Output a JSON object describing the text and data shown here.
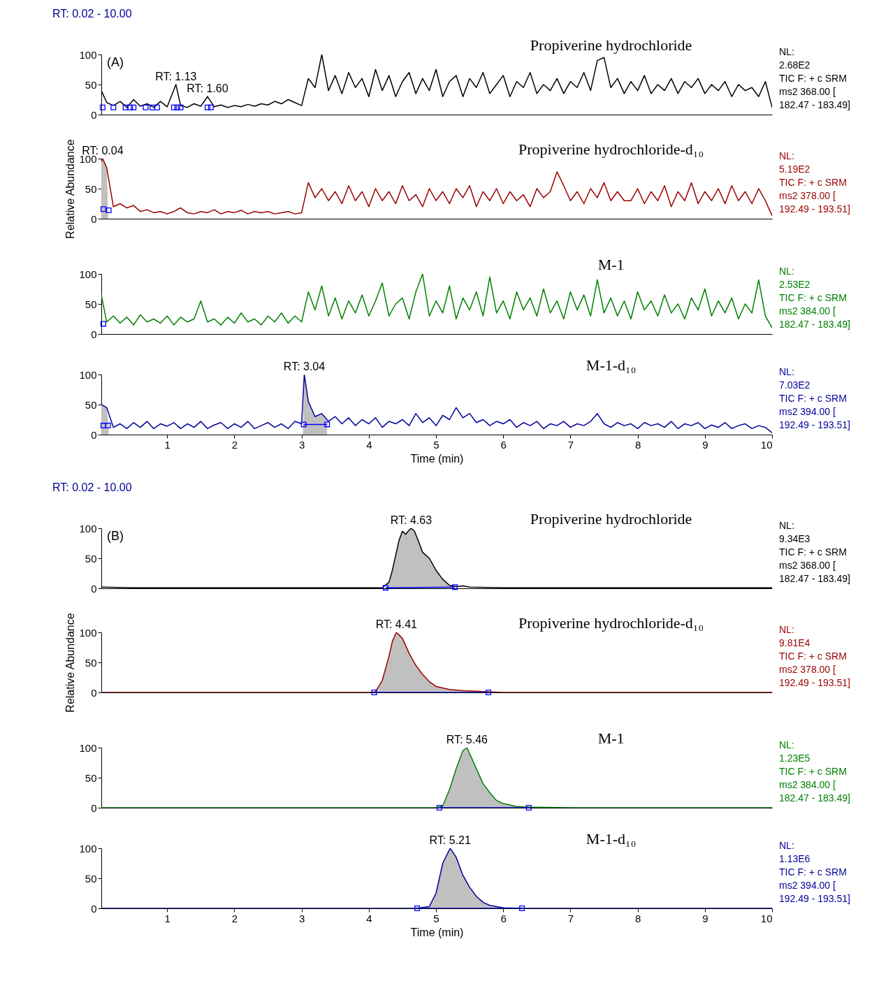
{
  "chart_data": [
    {
      "type": "other",
      "title": "RT: 0.02 - 10.00"
    },
    {
      "type": "line",
      "title": "Propiverine hydrochloride",
      "subtitle": "(A)",
      "xlim": [
        0.02,
        10
      ],
      "xticks": [
        1,
        2,
        3,
        4,
        5,
        6,
        7,
        8,
        9,
        10
      ],
      "ylim": [
        0,
        100
      ],
      "yticks": [
        0,
        50,
        100
      ],
      "tick_labels": "y",
      "series": [
        {
          "type": "line",
          "color": "#000000",
          "x": [
            0.02,
            0.1,
            0.2,
            0.3,
            0.4,
            0.5,
            0.6,
            0.7,
            0.8,
            0.9,
            1.0,
            1.13,
            1.2,
            1.3,
            1.4,
            1.5,
            1.6,
            1.7,
            1.8,
            1.9,
            2.0,
            2.1,
            2.2,
            2.3,
            2.4,
            2.5,
            2.6,
            2.7,
            2.8,
            2.9,
            3.0,
            3.1,
            3.2,
            3.3,
            3.4,
            3.5,
            3.6,
            3.7,
            3.8,
            3.9,
            4.0,
            4.1,
            4.2,
            4.3,
            4.4,
            4.5,
            4.6,
            4.7,
            4.8,
            4.9,
            5.0,
            5.1,
            5.2,
            5.3,
            5.4,
            5.5,
            5.6,
            5.7,
            5.8,
            5.9,
            6.0,
            6.1,
            6.2,
            6.3,
            6.4,
            6.5,
            6.6,
            6.7,
            6.8,
            6.9,
            7.0,
            7.1,
            7.2,
            7.3,
            7.4,
            7.5,
            7.6,
            7.7,
            7.8,
            7.9,
            8.0,
            8.1,
            8.2,
            8.3,
            8.4,
            8.5,
            8.6,
            8.7,
            8.8,
            8.9,
            9.0,
            9.1,
            9.2,
            9.3,
            9.4,
            9.5,
            9.6,
            9.7,
            9.8,
            9.9,
            10.0
          ],
          "values": [
            40,
            20,
            15,
            22,
            12,
            25,
            14,
            18,
            12,
            22,
            13,
            50,
            15,
            12,
            18,
            14,
            30,
            13,
            16,
            12,
            15,
            13,
            17,
            14,
            18,
            16,
            22,
            18,
            25,
            20,
            15,
            60,
            45,
            100,
            40,
            65,
            35,
            70,
            45,
            60,
            30,
            75,
            40,
            65,
            30,
            55,
            70,
            35,
            60,
            40,
            75,
            30,
            55,
            65,
            30,
            60,
            45,
            70,
            35,
            50,
            65,
            30,
            55,
            45,
            70,
            35,
            50,
            40,
            60,
            35,
            55,
            45,
            70,
            40,
            90,
            95,
            45,
            60,
            35,
            55,
            40,
            65,
            35,
            50,
            40,
            60,
            35,
            55,
            45,
            60,
            35,
            50,
            40,
            55,
            30,
            50,
            40,
            45,
            30,
            55,
            12
          ]
        },
        {
          "type": "scatter",
          "marker": "square",
          "color": "#0000ff",
          "x": [
            0.04,
            0.2,
            0.38,
            0.45,
            0.5,
            0.68,
            0.78,
            0.85,
            1.1,
            1.15,
            1.2,
            1.6,
            1.65
          ],
          "values": [
            12,
            12,
            12,
            12,
            12,
            12,
            12,
            12,
            12,
            12,
            12,
            12,
            12
          ]
        }
      ],
      "annotations": [
        "NL:",
        "2.68E2",
        "TIC F: + c SRM",
        "ms2 368.00 [",
        "182.47 - 183.49]",
        {
          "text": "RT: 1.13",
          "x": 1.13,
          "y": 50
        },
        {
          "text": "RT: 1.60",
          "x": 1.6,
          "y": 30
        }
      ]
    },
    {
      "type": "line",
      "title": "Propiverine hydrochloride-d₁₀",
      "xlim": [
        0.02,
        10
      ],
      "xticks": [
        1,
        2,
        3,
        4,
        5,
        6,
        7,
        8,
        9,
        10
      ],
      "ylim": [
        0,
        100
      ],
      "yticks": [
        0,
        50,
        100
      ],
      "tick_labels": "y",
      "ylabel": "Relative Abundance",
      "series": [
        {
          "type": "area",
          "color": "#c0c0c0",
          "x": [
            0.02,
            0.04,
            0.1,
            0.12
          ],
          "values": [
            95,
            100,
            85,
            15
          ]
        },
        {
          "type": "line",
          "color": "#990000",
          "x": [
            0.02,
            0.04,
            0.1,
            0.2,
            0.3,
            0.4,
            0.5,
            0.6,
            0.7,
            0.8,
            0.9,
            1.0,
            1.1,
            1.2,
            1.3,
            1.4,
            1.5,
            1.6,
            1.7,
            1.8,
            1.9,
            2.0,
            2.1,
            2.2,
            2.3,
            2.4,
            2.5,
            2.6,
            2.7,
            2.8,
            2.9,
            3.0,
            3.1,
            3.2,
            3.3,
            3.4,
            3.5,
            3.6,
            3.7,
            3.8,
            3.9,
            4.0,
            4.1,
            4.2,
            4.3,
            4.4,
            4.5,
            4.6,
            4.7,
            4.8,
            4.9,
            5.0,
            5.1,
            5.2,
            5.3,
            5.4,
            5.5,
            5.6,
            5.7,
            5.8,
            5.9,
            6.0,
            6.1,
            6.2,
            6.3,
            6.4,
            6.5,
            6.6,
            6.7,
            6.8,
            6.9,
            7.0,
            7.1,
            7.2,
            7.3,
            7.4,
            7.5,
            7.6,
            7.7,
            7.8,
            7.9,
            8.0,
            8.1,
            8.2,
            8.3,
            8.4,
            8.5,
            8.6,
            8.7,
            8.8,
            8.9,
            9.0,
            9.1,
            9.2,
            9.3,
            9.4,
            9.5,
            9.6,
            9.7,
            9.8,
            9.9,
            10.0
          ],
          "values": [
            95,
            100,
            85,
            20,
            25,
            18,
            22,
            12,
            15,
            10,
            12,
            8,
            12,
            18,
            10,
            8,
            12,
            10,
            15,
            8,
            12,
            10,
            14,
            8,
            12,
            10,
            12,
            8,
            10,
            12,
            8,
            10,
            60,
            35,
            50,
            30,
            45,
            25,
            55,
            30,
            45,
            20,
            50,
            30,
            45,
            25,
            55,
            30,
            40,
            20,
            50,
            30,
            45,
            25,
            50,
            35,
            55,
            20,
            45,
            30,
            50,
            25,
            45,
            30,
            40,
            20,
            50,
            35,
            45,
            78,
            55,
            30,
            45,
            25,
            50,
            35,
            60,
            30,
            45,
            30,
            30,
            50,
            25,
            45,
            30,
            55,
            20,
            45,
            30,
            60,
            25,
            45,
            30,
            50,
            25,
            55,
            30,
            45,
            25,
            50,
            30,
            5
          ]
        },
        {
          "type": "scatter",
          "marker": "square",
          "color": "#0000ff",
          "x": [
            0.05,
            0.13
          ],
          "values": [
            16,
            14
          ]
        }
      ],
      "annotations": [
        "NL:",
        "5.19E2",
        "TIC F: + c SRM",
        "ms2 378.00 [",
        "192.49 - 193.51]",
        {
          "text": "RT: 0.04",
          "x": 0.04,
          "y": 100
        }
      ]
    },
    {
      "type": "line",
      "title": "M-1",
      "xlim": [
        0.02,
        10
      ],
      "xticks": [
        1,
        2,
        3,
        4,
        5,
        6,
        7,
        8,
        9,
        10
      ],
      "ylim": [
        0,
        100
      ],
      "yticks": [
        0,
        50,
        100
      ],
      "tick_labels": "y",
      "series": [
        {
          "type": "line",
          "color": "#008000",
          "x": [
            0.02,
            0.1,
            0.2,
            0.3,
            0.4,
            0.5,
            0.6,
            0.7,
            0.8,
            0.9,
            1.0,
            1.1,
            1.2,
            1.3,
            1.4,
            1.5,
            1.6,
            1.7,
            1.8,
            1.9,
            2.0,
            2.1,
            2.2,
            2.3,
            2.4,
            2.5,
            2.6,
            2.7,
            2.8,
            2.9,
            3.0,
            3.1,
            3.2,
            3.3,
            3.4,
            3.5,
            3.6,
            3.7,
            3.8,
            3.9,
            4.0,
            4.1,
            4.2,
            4.3,
            4.4,
            4.5,
            4.6,
            4.7,
            4.8,
            4.9,
            5.0,
            5.1,
            5.2,
            5.3,
            5.4,
            5.5,
            5.6,
            5.7,
            5.8,
            5.9,
            6.0,
            6.1,
            6.2,
            6.3,
            6.4,
            6.5,
            6.6,
            6.7,
            6.8,
            6.9,
            7.0,
            7.1,
            7.2,
            7.3,
            7.4,
            7.5,
            7.6,
            7.7,
            7.8,
            7.9,
            8.0,
            8.1,
            8.2,
            8.3,
            8.4,
            8.5,
            8.6,
            8.7,
            8.8,
            8.9,
            9.0,
            9.1,
            9.2,
            9.3,
            9.4,
            9.5,
            9.6,
            9.7,
            9.8,
            9.9,
            10.0
          ],
          "values": [
            65,
            20,
            30,
            18,
            28,
            15,
            32,
            20,
            25,
            18,
            30,
            15,
            28,
            20,
            25,
            55,
            20,
            25,
            15,
            28,
            18,
            35,
            20,
            25,
            15,
            30,
            20,
            35,
            18,
            30,
            20,
            70,
            40,
            80,
            30,
            60,
            25,
            55,
            35,
            65,
            30,
            55,
            85,
            30,
            50,
            60,
            25,
            70,
            100,
            30,
            55,
            35,
            80,
            25,
            60,
            40,
            70,
            30,
            95,
            35,
            55,
            25,
            70,
            40,
            60,
            30,
            75,
            35,
            55,
            25,
            70,
            40,
            65,
            30,
            90,
            35,
            60,
            30,
            55,
            25,
            70,
            40,
            55,
            30,
            65,
            35,
            50,
            25,
            60,
            40,
            75,
            30,
            55,
            35,
            60,
            25,
            50,
            35,
            90,
            30,
            10
          ]
        },
        {
          "type": "scatter",
          "marker": "square",
          "color": "#0000ff",
          "x": [
            0.05
          ],
          "values": [
            17
          ]
        }
      ],
      "annotations": [
        "NL:",
        "2.53E2",
        "TIC F: + c SRM",
        "ms2 384.00 [",
        "182.47 - 183.49]"
      ]
    },
    {
      "type": "line",
      "title": "M-1-d₁₀",
      "xlim": [
        0.02,
        10
      ],
      "xticks": [
        1,
        2,
        3,
        4,
        5,
        6,
        7,
        8,
        9,
        10
      ],
      "ylim": [
        0,
        100
      ],
      "yticks": [
        0,
        50,
        100
      ],
      "xlabel": "Time (min)",
      "series": [
        {
          "type": "area",
          "color": "#c0c0c0",
          "x": [
            0.02,
            0.1,
            0.13
          ],
          "values": [
            50,
            45,
            15
          ]
        },
        {
          "type": "area",
          "color": "#c0c0c0",
          "x": [
            3.02,
            3.04,
            3.1,
            3.2,
            3.3,
            3.38
          ],
          "values": [
            20,
            100,
            55,
            30,
            35,
            22
          ]
        },
        {
          "type": "line",
          "color": "#000099",
          "x": [
            0.02,
            0.1,
            0.2,
            0.3,
            0.4,
            0.5,
            0.6,
            0.7,
            0.8,
            0.9,
            1.0,
            1.1,
            1.2,
            1.3,
            1.4,
            1.5,
            1.6,
            1.7,
            1.8,
            1.9,
            2.0,
            2.1,
            2.2,
            2.3,
            2.4,
            2.5,
            2.6,
            2.7,
            2.8,
            2.9,
            3.0,
            3.04,
            3.1,
            3.2,
            3.3,
            3.4,
            3.5,
            3.6,
            3.7,
            3.8,
            3.9,
            4.0,
            4.1,
            4.2,
            4.3,
            4.4,
            4.5,
            4.6,
            4.7,
            4.8,
            4.9,
            5.0,
            5.1,
            5.2,
            5.3,
            5.4,
            5.5,
            5.6,
            5.7,
            5.8,
            5.9,
            6.0,
            6.1,
            6.2,
            6.3,
            6.4,
            6.5,
            6.6,
            6.7,
            6.8,
            6.9,
            7.0,
            7.1,
            7.2,
            7.3,
            7.4,
            7.5,
            7.6,
            7.7,
            7.8,
            7.9,
            8.0,
            8.1,
            8.2,
            8.3,
            8.4,
            8.5,
            8.6,
            8.7,
            8.8,
            8.9,
            9.0,
            9.1,
            9.2,
            9.3,
            9.4,
            9.5,
            9.6,
            9.7,
            9.8,
            9.9,
            10.0
          ],
          "values": [
            50,
            45,
            12,
            18,
            10,
            20,
            12,
            22,
            10,
            18,
            14,
            20,
            10,
            18,
            12,
            22,
            10,
            16,
            20,
            10,
            18,
            12,
            22,
            10,
            15,
            20,
            12,
            18,
            10,
            22,
            18,
            100,
            55,
            30,
            35,
            22,
            30,
            18,
            28,
            15,
            25,
            18,
            28,
            12,
            22,
            18,
            25,
            15,
            35,
            20,
            28,
            15,
            32,
            25,
            45,
            28,
            35,
            20,
            25,
            15,
            22,
            18,
            25,
            12,
            20,
            15,
            22,
            10,
            18,
            15,
            22,
            12,
            18,
            15,
            22,
            35,
            18,
            12,
            20,
            15,
            18,
            10,
            20,
            15,
            18,
            12,
            22,
            10,
            18,
            15,
            20,
            10,
            16,
            12,
            20,
            10,
            15,
            18,
            10,
            15,
            12,
            3
          ]
        },
        {
          "type": "scatter",
          "marker": "square",
          "color": "#0000ff",
          "x": [
            0.05,
            0.12
          ],
          "values": [
            15,
            15
          ]
        },
        {
          "type": "scatter",
          "marker": "square",
          "color": "#0000ff",
          "x": [
            3.03,
            3.38
          ],
          "values": [
            17,
            17
          ]
        },
        {
          "type": "line",
          "color": "#0000ff",
          "x": [
            3.03,
            3.2,
            3.38
          ],
          "values": [
            17,
            17,
            17
          ]
        }
      ],
      "annotations": [
        "NL:",
        "7.03E2",
        "TIC F: + c SRM",
        "ms2 394.00 [",
        "192.49 - 193.51]",
        {
          "text": "RT: 3.04",
          "x": 3.04,
          "y": 100
        }
      ]
    },
    {
      "type": "other",
      "title": "RT: 0.02 - 10.00"
    },
    {
      "type": "line",
      "title": "Propiverine hydrochloride",
      "subtitle": "(B)",
      "xlim": [
        0.02,
        10
      ],
      "xticks": [
        1,
        2,
        3,
        4,
        5,
        6,
        7,
        8,
        9,
        10
      ],
      "ylim": [
        0,
        100
      ],
      "yticks": [
        0,
        50,
        100
      ],
      "tick_labels": "y",
      "series": [
        {
          "type": "area",
          "color": "#c0c0c0",
          "x": [
            4.25,
            4.3,
            4.35,
            4.4,
            4.45,
            4.5,
            4.55,
            4.6,
            4.63,
            4.68,
            4.75,
            4.8,
            4.9,
            5.0,
            5.1,
            5.2,
            5.28
          ],
          "values": [
            1,
            10,
            30,
            55,
            80,
            95,
            90,
            97,
            100,
            95,
            75,
            60,
            50,
            30,
            15,
            5,
            2
          ]
        },
        {
          "type": "line",
          "color": "#000000",
          "x": [
            0.02,
            0.5,
            1,
            1.5,
            2,
            2.5,
            3,
            3.5,
            4,
            4.2,
            4.3,
            4.35,
            4.4,
            4.45,
            4.5,
            4.55,
            4.6,
            4.63,
            4.68,
            4.75,
            4.8,
            4.9,
            5,
            5.1,
            5.2,
            5.3,
            5.4,
            5.5,
            6,
            7,
            8,
            9,
            10
          ],
          "values": [
            2,
            1,
            1,
            1,
            1,
            1,
            1,
            1,
            1,
            1,
            10,
            30,
            55,
            80,
            95,
            90,
            97,
            100,
            95,
            75,
            60,
            50,
            30,
            15,
            5,
            3,
            4,
            2,
            1,
            1,
            1,
            1,
            1
          ]
        },
        {
          "type": "scatter",
          "marker": "square",
          "color": "#0000ff",
          "x": [
            4.25,
            5.28
          ],
          "values": [
            1,
            2
          ]
        },
        {
          "type": "line",
          "color": "#0000ff",
          "x": [
            4.25,
            4.77,
            5.28
          ],
          "values": [
            1,
            1.5,
            2
          ]
        }
      ],
      "annotations": [
        "NL:",
        "9.34E3",
        "TIC F: + c SRM",
        "ms2 368.00 [",
        "182.47 - 183.49]",
        {
          "text": "RT: 4.63",
          "x": 4.63,
          "y": 100
        }
      ]
    },
    {
      "type": "line",
      "title": "Propiverine hydrochloride-d₁₀",
      "xlim": [
        0.02,
        10
      ],
      "xticks": [
        1,
        2,
        3,
        4,
        5,
        6,
        7,
        8,
        9,
        10
      ],
      "ylim": [
        0,
        100
      ],
      "yticks": [
        0,
        50,
        100
      ],
      "tick_labels": "y",
      "ylabel": "Relative Abundance",
      "series": [
        {
          "type": "area",
          "color": "#c0c0c0",
          "x": [
            4.08,
            4.2,
            4.3,
            4.35,
            4.41,
            4.5,
            4.6,
            4.7,
            4.8,
            4.9,
            5,
            5.2,
            5.4,
            5.6,
            5.78
          ],
          "values": [
            0,
            20,
            60,
            85,
            100,
            90,
            65,
            45,
            30,
            18,
            10,
            5,
            3,
            2,
            0
          ]
        },
        {
          "type": "line",
          "color": "#990000",
          "x": [
            0.02,
            1,
            2,
            3,
            4,
            4.1,
            4.2,
            4.3,
            4.35,
            4.41,
            4.5,
            4.6,
            4.7,
            4.8,
            4.9,
            5,
            5.2,
            5.4,
            5.6,
            5.8,
            6,
            7,
            8,
            9,
            10
          ],
          "values": [
            0,
            0,
            0,
            0,
            0,
            1,
            20,
            60,
            85,
            100,
            90,
            65,
            45,
            30,
            18,
            10,
            5,
            3,
            2,
            1,
            0,
            0,
            0,
            0,
            0
          ]
        },
        {
          "type": "scatter",
          "marker": "square",
          "color": "#0000ff",
          "x": [
            4.08,
            5.78
          ],
          "values": [
            0,
            0
          ]
        },
        {
          "type": "line",
          "color": "#0000ff",
          "x": [
            4.08,
            4.9,
            5.78
          ],
          "values": [
            0,
            0,
            0
          ]
        }
      ],
      "annotations": [
        "NL:",
        "9.81E4",
        "TIC F: + c SRM",
        "ms2 378.00 [",
        "192.49 - 193.51]",
        {
          "text": "RT: 4.41",
          "x": 4.41,
          "y": 100
        }
      ]
    },
    {
      "type": "line",
      "title": "M-1",
      "xlim": [
        0.02,
        10
      ],
      "xticks": [
        1,
        2,
        3,
        4,
        5,
        6,
        7,
        8,
        9,
        10
      ],
      "ylim": [
        0,
        100
      ],
      "yticks": [
        0,
        50,
        100
      ],
      "tick_labels": "y",
      "series": [
        {
          "type": "area",
          "color": "#c0c0c0",
          "x": [
            5.05,
            5.1,
            5.2,
            5.3,
            5.4,
            5.46,
            5.5,
            5.6,
            5.7,
            5.8,
            5.9,
            6,
            6.2,
            6.38
          ],
          "values": [
            0,
            3,
            30,
            65,
            95,
            100,
            90,
            65,
            40,
            25,
            12,
            7,
            2,
            0
          ]
        },
        {
          "type": "line",
          "color": "#008000",
          "x": [
            0.02,
            1,
            2,
            3,
            4,
            5,
            5.1,
            5.2,
            5.3,
            5.4,
            5.46,
            5.5,
            5.6,
            5.7,
            5.8,
            5.9,
            6,
            6.2,
            6.4,
            7,
            8,
            9,
            10
          ],
          "values": [
            0,
            0,
            0,
            0,
            0,
            0,
            3,
            30,
            65,
            95,
            100,
            90,
            65,
            40,
            25,
            12,
            7,
            2,
            1,
            0,
            0,
            0,
            0
          ]
        },
        {
          "type": "scatter",
          "marker": "square",
          "color": "#0000ff",
          "x": [
            5.05,
            6.38
          ],
          "values": [
            0,
            0
          ]
        },
        {
          "type": "line",
          "color": "#0000ff",
          "x": [
            5.05,
            5.7,
            6.38
          ],
          "values": [
            0,
            0,
            0
          ]
        }
      ],
      "annotations": [
        "NL:",
        "1.23E5",
        "TIC F: + c SRM",
        "ms2 384.00 [",
        "182.47 - 183.49]",
        {
          "text": "RT: 5.46",
          "x": 5.46,
          "y": 100
        }
      ]
    },
    {
      "type": "line",
      "title": "M-1-d₁₀",
      "xlim": [
        0.02,
        10
      ],
      "xticks": [
        1,
        2,
        3,
        4,
        5,
        6,
        7,
        8,
        9,
        10
      ],
      "ylim": [
        0,
        100
      ],
      "yticks": [
        0,
        50,
        100
      ],
      "xlabel": "Time (min)",
      "series": [
        {
          "type": "area",
          "color": "#c0c0c0",
          "x": [
            4.72,
            4.9,
            5,
            5.1,
            5.21,
            5.3,
            5.4,
            5.5,
            5.6,
            5.7,
            5.8,
            6,
            6.28
          ],
          "values": [
            0,
            3,
            25,
            75,
            100,
            85,
            55,
            35,
            20,
            10,
            5,
            1,
            0
          ]
        },
        {
          "type": "line",
          "color": "#000099",
          "x": [
            0.02,
            1,
            2,
            3,
            4,
            4.7,
            4.9,
            5,
            5.1,
            5.21,
            5.3,
            5.4,
            5.5,
            5.6,
            5.7,
            5.8,
            6,
            6.3,
            7,
            8,
            9,
            10
          ],
          "values": [
            0,
            0,
            0,
            0,
            0,
            0,
            3,
            25,
            75,
            100,
            85,
            55,
            35,
            20,
            10,
            5,
            1,
            0,
            0,
            0,
            0,
            0
          ]
        },
        {
          "type": "scatter",
          "marker": "square",
          "color": "#0000ff",
          "x": [
            4.72,
            6.28
          ],
          "values": [
            0,
            0
          ]
        },
        {
          "type": "line",
          "color": "#0000ff",
          "x": [
            4.72,
            5.5,
            6.28
          ],
          "values": [
            0,
            0,
            0
          ]
        }
      ],
      "annotations": [
        "NL:",
        "1.13E6",
        "TIC F: + c SRM",
        "ms2 394.00 [",
        "192.49 - 193.51]",
        {
          "text": "RT: 5.21",
          "x": 5.21,
          "y": 100
        }
      ]
    }
  ]
}
